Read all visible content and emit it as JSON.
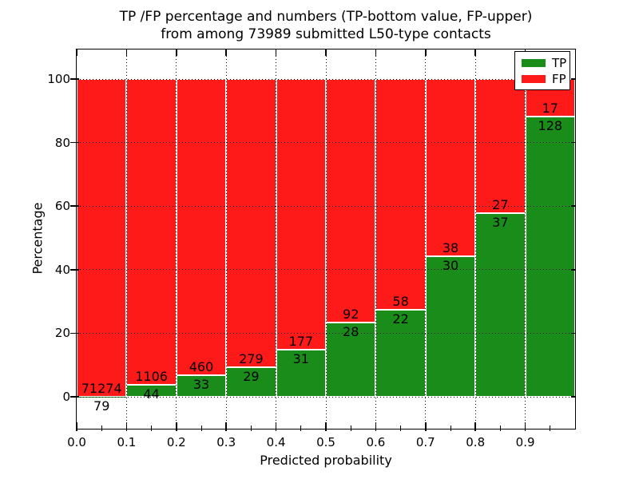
{
  "title": {
    "line1": "TP /FP percentage and numbers (TP-bottom value, FP-upper)",
    "line2": "from among 73989 submitted L50-type contacts"
  },
  "chart_data": {
    "type": "bar",
    "stacked": true,
    "title": "TP /FP percentage and numbers (TP-bottom value, FP-upper) from among 73989 submitted L50-type contacts",
    "xlabel": "Predicted probability",
    "ylabel": "Percentage",
    "total_contacts": 73989,
    "xlim": [
      0.0,
      1.0
    ],
    "ylim": [
      -10,
      109
    ],
    "grid": true,
    "bin_edges": [
      0.0,
      0.1,
      0.2,
      0.3,
      0.4,
      0.5,
      0.6,
      0.7,
      0.8,
      0.9,
      1.0
    ],
    "x_tick_labels": [
      "0.0",
      "0.1",
      "0.2",
      "0.3",
      "0.4",
      "0.5",
      "0.6",
      "0.7",
      "0.8",
      "0.9"
    ],
    "y_ticks": [
      0,
      20,
      40,
      60,
      80,
      100
    ],
    "bar_total_percent": 100,
    "series": [
      {
        "name": "TP",
        "color": "#1a8c1a",
        "stack_position": "bottom",
        "counts": [
          79,
          44,
          33,
          29,
          31,
          28,
          22,
          30,
          37,
          128
        ]
      },
      {
        "name": "FP",
        "color": "#ff1a1a",
        "stack_position": "top",
        "counts": [
          71274,
          1106,
          460,
          279,
          177,
          92,
          58,
          38,
          27,
          17
        ]
      }
    ],
    "legend_position": "upper right"
  },
  "legend": {
    "items": [
      {
        "label": "TP",
        "color": "#1a8c1a"
      },
      {
        "label": "FP",
        "color": "#ff1a1a"
      }
    ]
  }
}
